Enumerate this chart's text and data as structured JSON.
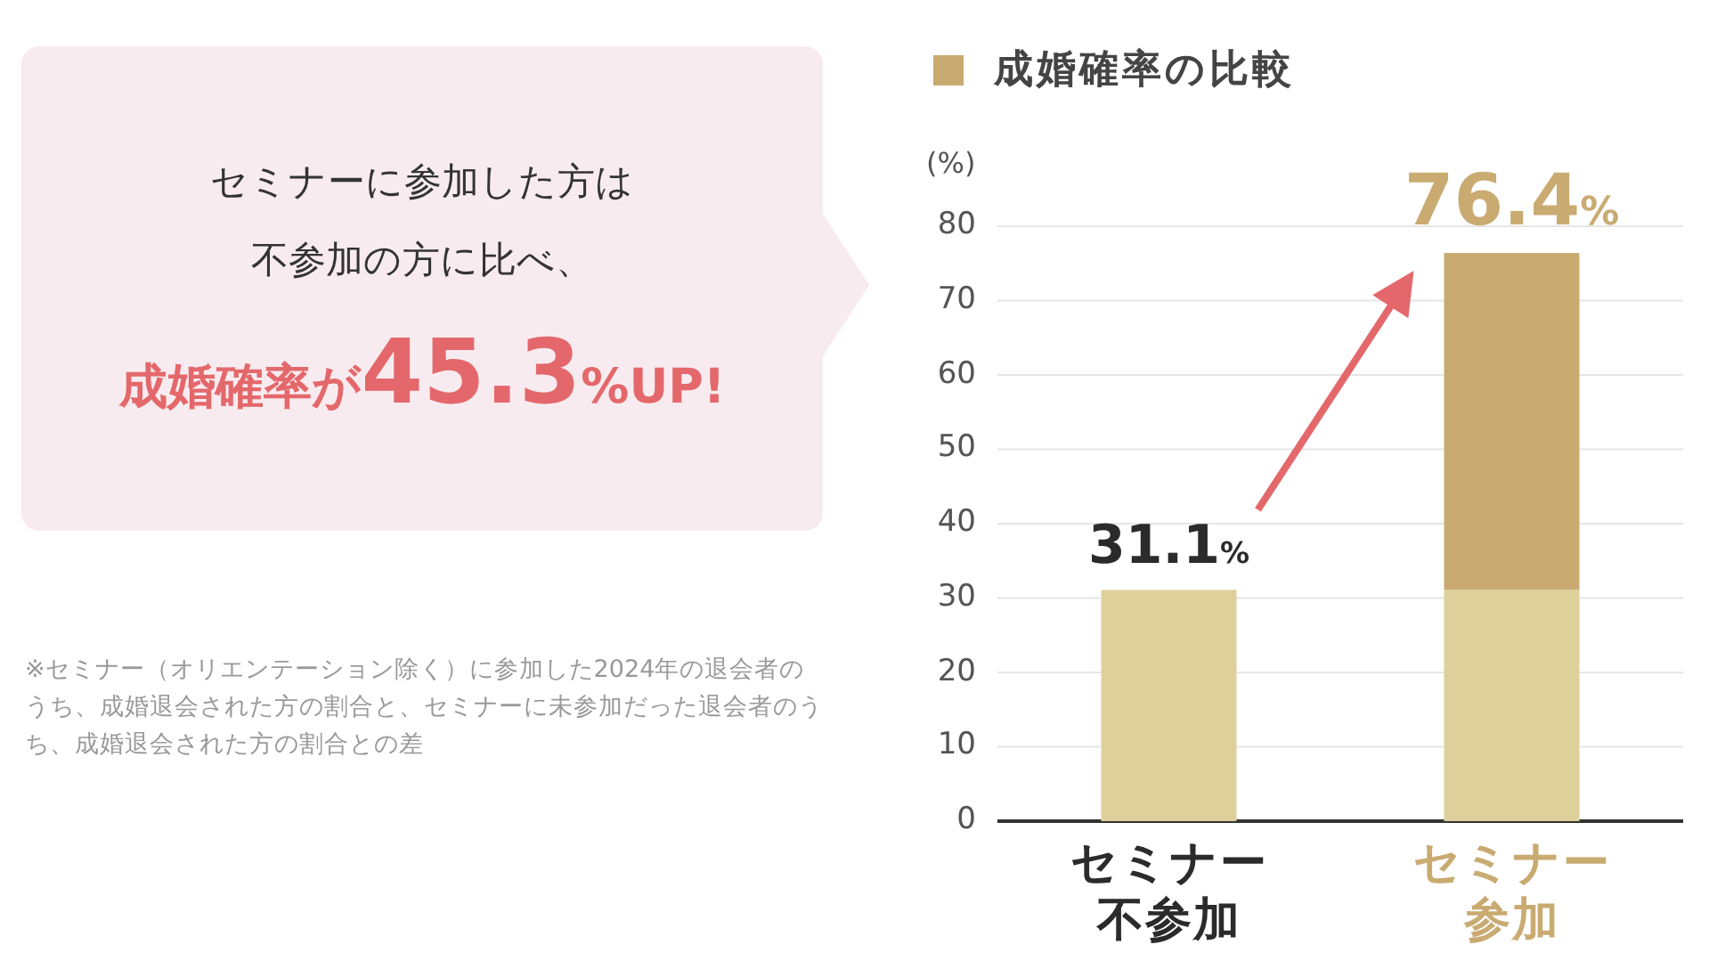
{
  "chart_data": {
    "type": "bar",
    "stacked": true,
    "ylabel": "(%)",
    "categories": [
      "セミナー不参加",
      "セミナー参加"
    ],
    "series": [
      {
        "color": "#ded09b",
        "values": [
          31.1,
          31.1
        ]
      },
      {
        "name": "成婚確率の比較",
        "color": "#c9ab72",
        "values": [
          null,
          45.3
        ]
      }
    ],
    "totals": [
      "31.1%",
      "76.4%"
    ],
    "ylim": [
      0,
      80
    ],
    "yticks": [
      0,
      10,
      20,
      30,
      40,
      50,
      60,
      70,
      80
    ],
    "grid": "y",
    "legend": "top left",
    "annotations": [
      "セミナーに参加した方は",
      "不参加の方に比べ、",
      "成婚確率が45.3%UP!",
      "※セミナー（オリエンテーション除く）に参加した2024年の退会者のうち、成婚退会された方の割合と、セミナーに未参加だった退会者のうち、成婚退会された方の割合との差"
    ]
  }
}
